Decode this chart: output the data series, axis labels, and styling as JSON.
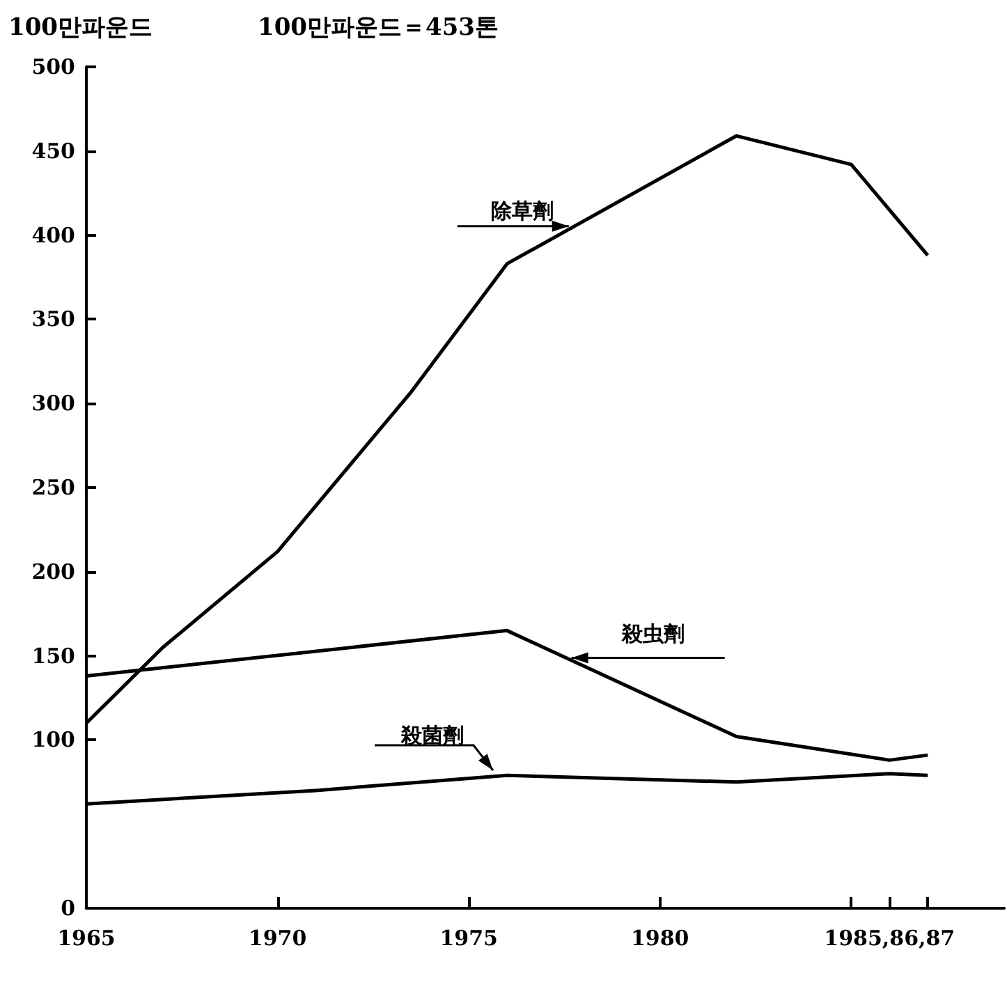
{
  "chart_data": {
    "type": "line",
    "ylabel": "100만파운드",
    "annotations": [
      "100만파운드＝453톤"
    ],
    "xlim": [
      1965,
      1989
    ],
    "xticks": [
      1965,
      1970,
      1975,
      1980,
      {
        "value": 1985,
        "label": null
      },
      {
        "value": 1986,
        "label": "1985,86,87"
      },
      {
        "value": 1987,
        "label": null
      }
    ],
    "ylim": [
      0,
      500
    ],
    "yticks": [
      0,
      100,
      150,
      200,
      250,
      300,
      350,
      400,
      450,
      500
    ],
    "grid": false,
    "legend": false,
    "marker": "none",
    "line_style": "solid",
    "series": [
      {
        "name": "除草劑",
        "color": "#000000",
        "x": [
          1965,
          1967,
          1970,
          1973.5,
          1976,
          1982,
          1985,
          1987
        ],
        "values": [
          110,
          155,
          212,
          307,
          383,
          459,
          442,
          388
        ]
      },
      {
        "name": "殺虫劑",
        "color": "#000000",
        "x": [
          1965,
          1976,
          1982,
          1986,
          1987
        ],
        "values": [
          138,
          165,
          102,
          88,
          91
        ]
      },
      {
        "name": "殺菌劑",
        "color": "#000000",
        "x": [
          1965,
          1971,
          1976,
          1982,
          1986,
          1987
        ],
        "values": [
          62,
          70,
          79,
          75,
          80,
          79
        ]
      }
    ]
  }
}
